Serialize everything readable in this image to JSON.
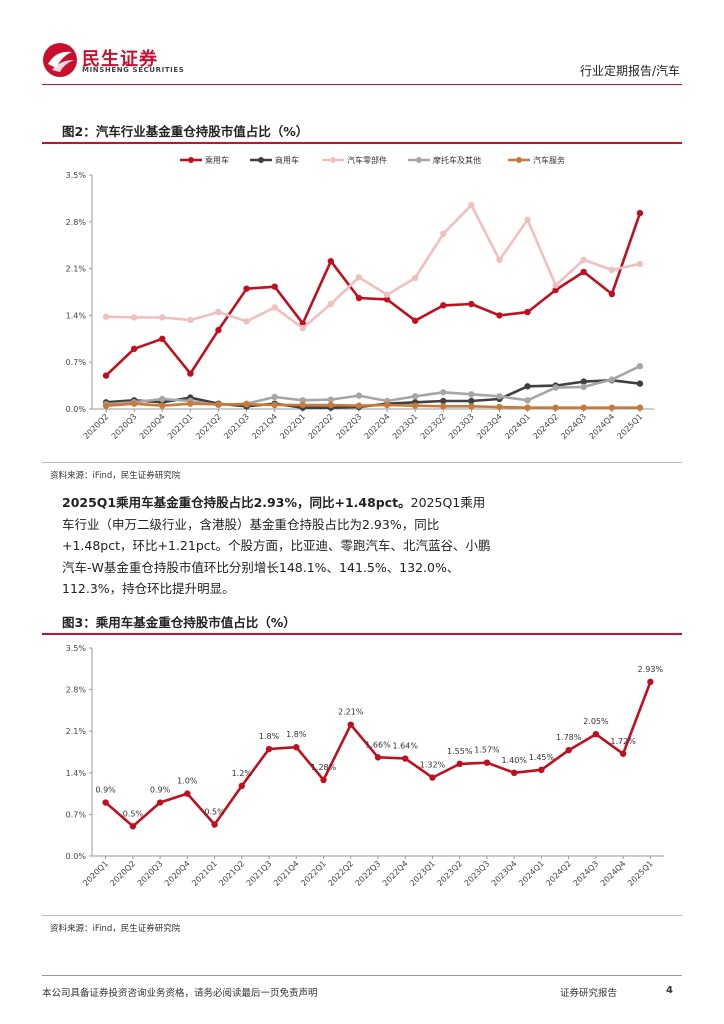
{
  "header": {
    "logo_cn": "民生证券",
    "logo_en": "MINSHENG SECURITIES",
    "section": "行业定期报告/汽车"
  },
  "figure2": {
    "title": "图2：汽车行业基金重仓持股市值占比（%）",
    "source": "资料来源：iFind，民生证券研究院"
  },
  "paragraph": {
    "lead": "2025Q1乘用车基金重仓持股占比2.93%，同比+1.48pct。",
    "body": "2025Q1乘用车行业（申万二级行业，含港股）基金重仓持股占比为2.93%，同比+1.48pct，环比+1.21pct。个股方面，比亚迪、零跑汽车、北汽蓝谷、小鹏汽车-W基金重仓持股市值环比分别增长148.1%、141.5%、132.0%、112.3%，持仓环比提升明显。"
  },
  "figure3": {
    "title": "图3：乘用车基金重仓持股市值占比（%）",
    "source": "资料来源：iFind，民生证券研究院"
  },
  "footer": {
    "disclaimer": "本公司具备证券投资咨询业务资格，请务必阅读最后一页免责声明",
    "report_type": "证券研究报告",
    "page": "4"
  },
  "chart_data": [
    {
      "type": "line",
      "title": "图2：汽车行业基金重仓持股市值占比（%）",
      "xlabel": "",
      "ylabel": "",
      "ylim": [
        0,
        3.5
      ],
      "yticks": [
        "0.0%",
        "0.7%",
        "1.4%",
        "2.1%",
        "2.8%",
        "3.5%"
      ],
      "legend_position": "top",
      "categories": [
        "2020Q2",
        "2020Q3",
        "2020Q4",
        "2021Q1",
        "2021Q2",
        "2021Q3",
        "2021Q4",
        "2022Q1",
        "2022Q2",
        "2022Q3",
        "2022Q4",
        "2023Q1",
        "2023Q2",
        "2023Q3",
        "2023Q4",
        "2024Q1",
        "2024Q2",
        "2024Q3",
        "2024Q4",
        "2025Q1"
      ],
      "series": [
        {
          "name": "乘用车",
          "color": "#c0101f",
          "values": [
            0.5,
            0.9,
            1.05,
            0.53,
            1.18,
            1.8,
            1.83,
            1.28,
            2.21,
            1.66,
            1.64,
            1.32,
            1.55,
            1.57,
            1.4,
            1.45,
            1.78,
            2.05,
            1.72,
            2.93
          ]
        },
        {
          "name": "商用车",
          "color": "#404040",
          "values": [
            0.1,
            0.13,
            0.1,
            0.17,
            0.08,
            0.04,
            0.08,
            0.02,
            0.02,
            0.03,
            0.08,
            0.1,
            0.12,
            0.12,
            0.15,
            0.34,
            0.35,
            0.41,
            0.43,
            0.38
          ]
        },
        {
          "name": "汽车零部件",
          "color": "#f0c0c0",
          "values": [
            1.38,
            1.37,
            1.37,
            1.33,
            1.45,
            1.31,
            1.52,
            1.21,
            1.57,
            1.97,
            1.71,
            1.96,
            2.62,
            3.05,
            2.23,
            2.83,
            1.85,
            2.23,
            2.08,
            2.17
          ]
        },
        {
          "name": "摩托车及其他",
          "color": "#a6a6a6",
          "values": [
            0.07,
            0.1,
            0.15,
            0.12,
            0.06,
            0.08,
            0.18,
            0.13,
            0.14,
            0.2,
            0.12,
            0.19,
            0.25,
            0.22,
            0.19,
            0.13,
            0.32,
            0.33,
            0.44,
            0.64
          ]
        },
        {
          "name": "汽车服务",
          "color": "#c87a3a",
          "values": [
            0.05,
            0.08,
            0.05,
            0.08,
            0.07,
            0.07,
            0.06,
            0.06,
            0.06,
            0.05,
            0.06,
            0.05,
            0.04,
            0.04,
            0.03,
            0.02,
            0.02,
            0.02,
            0.02,
            0.02
          ]
        }
      ]
    },
    {
      "type": "line",
      "title": "图3：乘用车基金重仓持股市值占比（%）",
      "xlabel": "",
      "ylabel": "",
      "ylim": [
        0,
        3.5
      ],
      "yticks": [
        "0.0%",
        "0.7%",
        "1.4%",
        "2.1%",
        "2.8%",
        "3.5%"
      ],
      "categories": [
        "2020Q1",
        "2020Q2",
        "2020Q3",
        "2020Q4",
        "2021Q1",
        "2021Q2",
        "2021Q3",
        "2021Q4",
        "2022Q1",
        "2022Q2",
        "2022Q3",
        "2022Q4",
        "2023Q1",
        "2023Q2",
        "2023Q3",
        "2023Q4",
        "2024Q1",
        "2024Q2",
        "2024Q3",
        "2024Q4",
        "2025Q1"
      ],
      "series": [
        {
          "name": "乘用车",
          "color": "#c0101f",
          "values": [
            0.9,
            0.5,
            0.9,
            1.05,
            0.53,
            1.18,
            1.8,
            1.83,
            1.28,
            2.21,
            1.66,
            1.64,
            1.32,
            1.55,
            1.57,
            1.4,
            1.45,
            1.78,
            2.05,
            1.72,
            2.93
          ],
          "labels": [
            "0.9%",
            "0.5%",
            "0.9%",
            "1.0%",
            "0.5%",
            "1.2%",
            "1.8%",
            "1.8%",
            "1.28%",
            "2.21%",
            "1.66%",
            "1.64%",
            "1.32%",
            "1.55%",
            "1.57%",
            "1.40%",
            "1.45%",
            "1.78%",
            "2.05%",
            "1.72%",
            "2.93%"
          ]
        }
      ]
    }
  ]
}
